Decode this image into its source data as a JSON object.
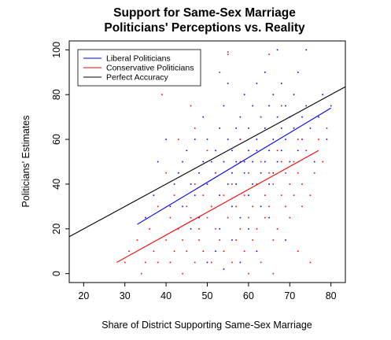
{
  "chart_data": {
    "type": "scatter",
    "title": "Support for Same-Sex Marriage",
    "subtitle": "Politicians' Perceptions vs. Reality",
    "xlabel": "Share of District Supporting Same-Sex Marriage",
    "ylabel": "Politicians' Estimates",
    "xlim": [
      16.5,
      83.5
    ],
    "ylim": [
      -4,
      104
    ],
    "x_ticks": [
      "20",
      "30",
      "40",
      "50",
      "60",
      "70",
      "80"
    ],
    "y_ticks": [
      "0",
      "20",
      "40",
      "60",
      "80",
      "100"
    ],
    "grid": false,
    "legend_position": "top-left",
    "legend": [
      {
        "label": "Liberal Politicians",
        "color": "#0000ff"
      },
      {
        "label": "Conservative Politicians",
        "color": "#ff0000"
      },
      {
        "label": "Perfect Accuracy",
        "color": "#000000"
      }
    ],
    "series": [
      {
        "name": "Liberal Politicians",
        "color": "#0000ff",
        "kind": "points",
        "points": [
          [
            35,
            25
          ],
          [
            37,
            35
          ],
          [
            38,
            50
          ],
          [
            40,
            60
          ],
          [
            41,
            30
          ],
          [
            42,
            40
          ],
          [
            43,
            45
          ],
          [
            44,
            50
          ],
          [
            44,
            30
          ],
          [
            45,
            55
          ],
          [
            46,
            40
          ],
          [
            46,
            20
          ],
          [
            47,
            35
          ],
          [
            47,
            60
          ],
          [
            48,
            45
          ],
          [
            48,
            25
          ],
          [
            49,
            50
          ],
          [
            49,
            70
          ],
          [
            50,
            40
          ],
          [
            50,
            60
          ],
          [
            51,
            30
          ],
          [
            51,
            50
          ],
          [
            52,
            55
          ],
          [
            52,
            45
          ],
          [
            53,
            35
          ],
          [
            53,
            65
          ],
          [
            53,
            20
          ],
          [
            54,
            50
          ],
          [
            54,
            75
          ],
          [
            55,
            40
          ],
          [
            55,
            60
          ],
          [
            55,
            85
          ],
          [
            56,
            45
          ],
          [
            56,
            55
          ],
          [
            56,
            30
          ],
          [
            57,
            50
          ],
          [
            57,
            65
          ],
          [
            57,
            40
          ],
          [
            58,
            60
          ],
          [
            58,
            70
          ],
          [
            58,
            25
          ],
          [
            59,
            50
          ],
          [
            59,
            80
          ],
          [
            59,
            45
          ],
          [
            60,
            55
          ],
          [
            60,
            35
          ],
          [
            60,
            65
          ],
          [
            61,
            50
          ],
          [
            61,
            75
          ],
          [
            61,
            40
          ],
          [
            62,
            60
          ],
          [
            62,
            85
          ],
          [
            62,
            55
          ],
          [
            63,
            45
          ],
          [
            63,
            70
          ],
          [
            63,
            30
          ],
          [
            64,
            65
          ],
          [
            64,
            50
          ],
          [
            64,
            90
          ],
          [
            65,
            55
          ],
          [
            65,
            75
          ],
          [
            65,
            40
          ],
          [
            66,
            60
          ],
          [
            66,
            80
          ],
          [
            66,
            45
          ],
          [
            67,
            70
          ],
          [
            67,
            50
          ],
          [
            67,
            100
          ],
          [
            68,
            65
          ],
          [
            68,
            55
          ],
          [
            68,
            85
          ],
          [
            69,
            60
          ],
          [
            69,
            75
          ],
          [
            70,
            50
          ],
          [
            70,
            70
          ],
          [
            71,
            65
          ],
          [
            71,
            80
          ],
          [
            72,
            55
          ],
          [
            72,
            90
          ],
          [
            73,
            70
          ],
          [
            73,
            60
          ],
          [
            74,
            75
          ],
          [
            75,
            65
          ],
          [
            76,
            50
          ],
          [
            77,
            70
          ],
          [
            78,
            80
          ],
          [
            79,
            60
          ],
          [
            80,
            75
          ],
          [
            50,
            5
          ],
          [
            52,
            10
          ],
          [
            56,
            15
          ],
          [
            60,
            20
          ],
          [
            62,
            10
          ],
          [
            65,
            25
          ],
          [
            54,
            2
          ],
          [
            58,
            5
          ],
          [
            69,
            15
          ],
          [
            74,
            100
          ]
        ]
      },
      {
        "name": "Conservative Politicians",
        "color": "#ff0000",
        "kind": "points",
        "points": [
          [
            30,
            5
          ],
          [
            31,
            10
          ],
          [
            33,
            15
          ],
          [
            34,
            0
          ],
          [
            35,
            5
          ],
          [
            36,
            20
          ],
          [
            37,
            10
          ],
          [
            38,
            30
          ],
          [
            38,
            5
          ],
          [
            39,
            80
          ],
          [
            40,
            15
          ],
          [
            40,
            45
          ],
          [
            41,
            25
          ],
          [
            41,
            5
          ],
          [
            42,
            10
          ],
          [
            42,
            35
          ],
          [
            43,
            20
          ],
          [
            43,
            60
          ],
          [
            44,
            15
          ],
          [
            44,
            0
          ],
          [
            45,
            30
          ],
          [
            45,
            10
          ],
          [
            46,
            25
          ],
          [
            46,
            75
          ],
          [
            47,
            5
          ],
          [
            47,
            40
          ],
          [
            48,
            20
          ],
          [
            48,
            15
          ],
          [
            49,
            35
          ],
          [
            49,
            10
          ],
          [
            50,
            25
          ],
          [
            50,
            55
          ],
          [
            51,
            5
          ],
          [
            51,
            30
          ],
          [
            52,
            20
          ],
          [
            52,
            45
          ],
          [
            53,
            15
          ],
          [
            53,
            90
          ],
          [
            54,
            35
          ],
          [
            54,
            10
          ],
          [
            55,
            99
          ],
          [
            55,
            25
          ],
          [
            56,
            40
          ],
          [
            56,
            5
          ],
          [
            57,
            30
          ],
          [
            57,
            15
          ],
          [
            58,
            50
          ],
          [
            58,
            20
          ],
          [
            59,
            35
          ],
          [
            59,
            10
          ],
          [
            60,
            45
          ],
          [
            60,
            25
          ],
          [
            61,
            30
          ],
          [
            61,
            15
          ],
          [
            62,
            40
          ],
          [
            62,
            20
          ],
          [
            63,
            50
          ],
          [
            63,
            5
          ],
          [
            64,
            35
          ],
          [
            64,
            25
          ],
          [
            65,
            45
          ],
          [
            65,
            30
          ],
          [
            66,
            40
          ],
          [
            66,
            15
          ],
          [
            67,
            55
          ],
          [
            67,
            20
          ],
          [
            68,
            35
          ],
          [
            68,
            50
          ],
          [
            69,
            30
          ],
          [
            69,
            45
          ],
          [
            70,
            40
          ],
          [
            70,
            25
          ],
          [
            71,
            50
          ],
          [
            71,
            35
          ],
          [
            72,
            45
          ],
          [
            72,
            60
          ],
          [
            73,
            30
          ],
          [
            73,
            40
          ],
          [
            74,
            55
          ],
          [
            75,
            35
          ],
          [
            76,
            45
          ],
          [
            77,
            60
          ],
          [
            78,
            50
          ],
          [
            79,
            65
          ],
          [
            55,
            98
          ],
          [
            65,
            98
          ],
          [
            58,
            60
          ],
          [
            63,
            70
          ],
          [
            68,
            75
          ],
          [
            47,
            65
          ],
          [
            60,
            0
          ],
          [
            66,
            0
          ],
          [
            72,
            10
          ],
          [
            75,
            5
          ]
        ]
      },
      {
        "name": "Liberal Politicians",
        "color": "#0000ff",
        "kind": "line",
        "x": [
          33,
          80
        ],
        "y": [
          22,
          74
        ]
      },
      {
        "name": "Conservative Politicians",
        "color": "#ff0000",
        "kind": "line",
        "x": [
          28,
          77
        ],
        "y": [
          5,
          55
        ]
      },
      {
        "name": "Perfect Accuracy",
        "color": "#000000",
        "kind": "line",
        "x": [
          16.5,
          83.5
        ],
        "y": [
          16.5,
          83.5
        ]
      }
    ]
  }
}
